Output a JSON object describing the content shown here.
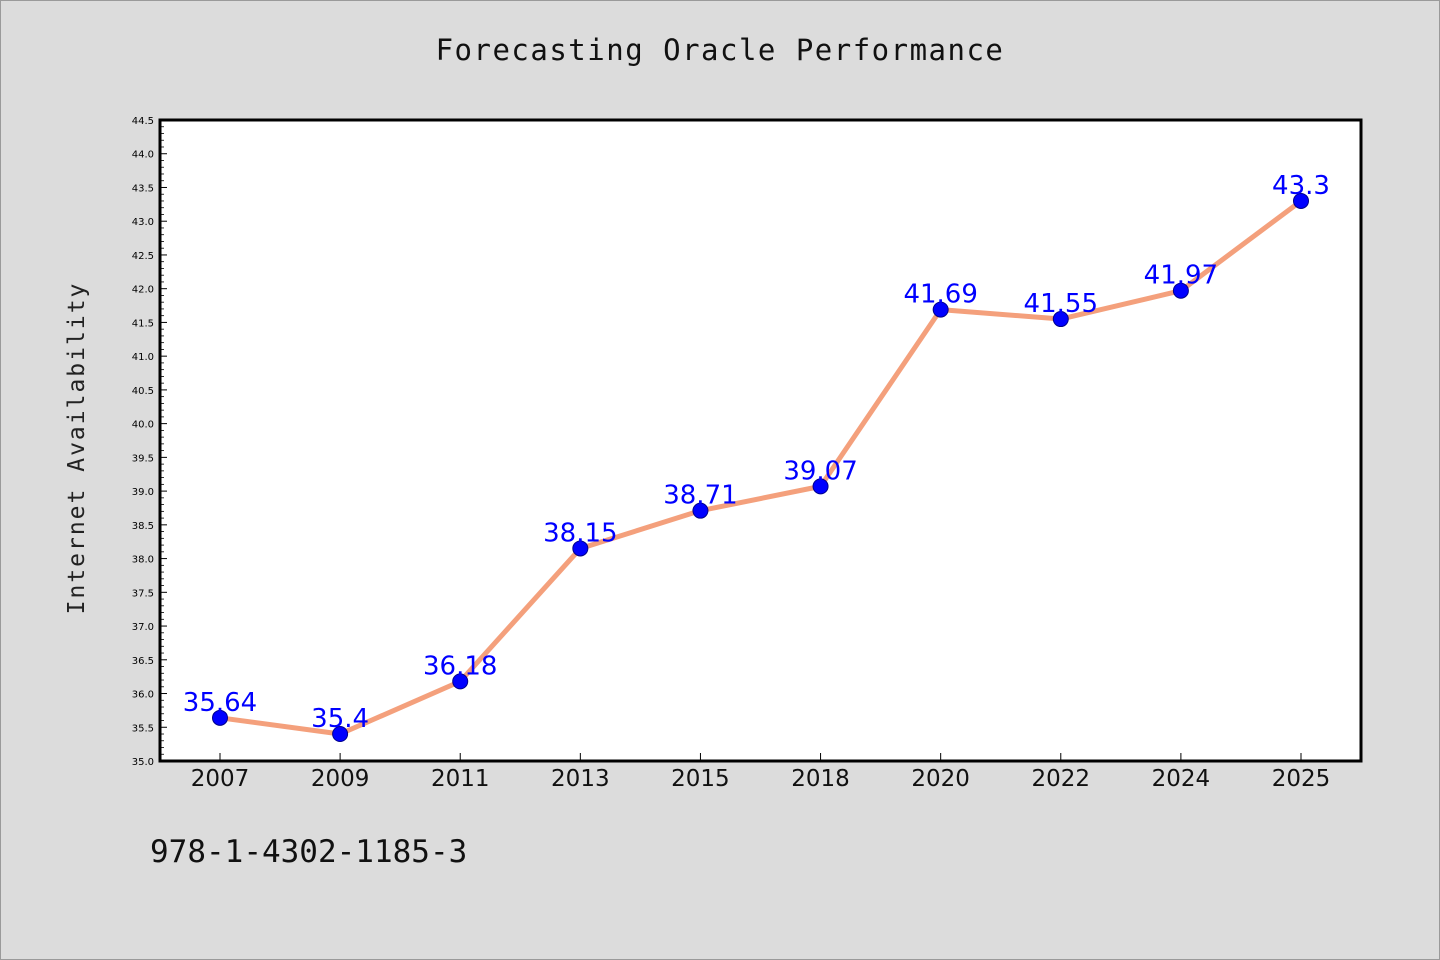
{
  "chart_data": {
    "type": "line",
    "title": "Forecasting Oracle Performance",
    "xlabel": "",
    "ylabel": "Internet Availability",
    "categories": [
      "2007",
      "2009",
      "2011",
      "2013",
      "2015",
      "2018",
      "2020",
      "2022",
      "2024",
      "2025"
    ],
    "values": [
      35.64,
      35.4,
      36.18,
      38.15,
      38.71,
      39.07,
      41.69,
      41.55,
      41.97,
      43.3
    ],
    "data_labels": [
      "35.64",
      "35.4",
      "36.18",
      "38.15",
      "38.71",
      "39.07",
      "41.69",
      "41.55",
      "41.97",
      "43.3"
    ],
    "ylim": [
      35.0,
      44.5
    ],
    "yticks": [
      "35.0",
      "35.5",
      "36.0",
      "36.5",
      "37.0",
      "37.5",
      "38.0",
      "38.5",
      "39.0",
      "39.5",
      "40.0",
      "40.5",
      "41.0",
      "41.5",
      "42.0",
      "42.5",
      "43.0",
      "43.5",
      "44.0",
      "44.5"
    ],
    "grid": false,
    "legend": "none",
    "colors": {
      "line": "#f4a07c",
      "marker": "#0000ff",
      "marker_edge": "#00008b",
      "data_label": "#0000ff",
      "background": "#dcdcdc",
      "plot_background": "#ffffff"
    }
  },
  "footer": {
    "identifier": "978-1-4302-1185-3"
  }
}
